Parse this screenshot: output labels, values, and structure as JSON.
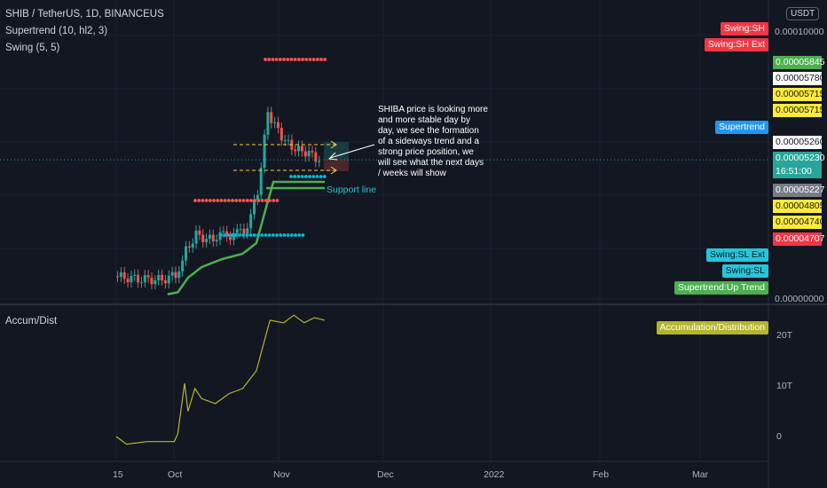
{
  "header": {
    "symbol_line": "SHIB / TetherUS, 1D, BINANCEUS",
    "indicator1": "Supertrend (10, hl2, 3)",
    "indicator2": "Swing (5, 5)",
    "pane2_title": "Accum/Dist",
    "currency_button": "USDT"
  },
  "labels": {
    "swing_sh": "Swing:SH",
    "swing_sh_ext": "Swing:SH Ext",
    "supertrend": "Supertrend",
    "swing_sl_ext": "Swing:SL Ext",
    "swing_sl": "Swing:SL",
    "supertrend_up": "Supertrend:Up Trend",
    "accum_dist": "Accumulation/Distribution"
  },
  "price_tags": {
    "p1": "0.00005845",
    "p2": "0.00005780",
    "p3": "0.00005715",
    "p4": "0.00005715",
    "p5": "0.00005260",
    "p6": "0.00005230",
    "p6_time": "16:51:00",
    "p7": "0.00005227",
    "p8": "0.00004805",
    "p9": "0.00004740",
    "p10": "0.00004707"
  },
  "annotation": {
    "note": "SHIBA price is looking more and more stable day by day, we see the formation of a sideways trend and a strong price position, we will see what the next days / weeks will show",
    "support": "Support line"
  },
  "colors": {
    "background": "#131722",
    "up": "#26a69a",
    "down": "#ef5350",
    "supertrend": "#4caf50",
    "swing_high": "#ff5252",
    "swing_low": "#00bcd4",
    "ad_line": "#b5b52c",
    "guide": "#f5d03b"
  },
  "chart_data": [
    {
      "type": "line",
      "title": "SHIB / TetherUS, 1D, BINANCEUS",
      "yaxis_ticks": [
        "0.00010000",
        "0.00000000"
      ],
      "xaxis_ticks": [
        "15",
        "Oct",
        "Nov",
        "Dec",
        "2022",
        "Feb",
        "Mar"
      ],
      "close_approx": [
        [
          "Sep 13",
          8.5e-06
        ],
        [
          "Sep 20",
          7.5e-06
        ],
        [
          "Sep 27",
          7.2e-06
        ],
        [
          "Oct 1",
          9e-06
        ],
        [
          "Oct 4",
          1.8e-05
        ],
        [
          "Oct 7",
          2.45e-05
        ],
        [
          "Oct 10",
          2.25e-05
        ],
        [
          "Oct 14",
          2.35e-05
        ],
        [
          "Oct 18",
          2.4e-05
        ],
        [
          "Oct 22",
          2.7e-05
        ],
        [
          "Oct 25",
          4e-05
        ],
        [
          "Oct 28",
          7e-05
        ],
        [
          "Oct 31",
          6.3e-05
        ],
        [
          "Nov 3",
          5.8e-05
        ],
        [
          "Nov 6",
          5.6e-05
        ],
        [
          "Nov 9",
          5.5e-05
        ],
        [
          "Nov 12",
          5.23e-05
        ]
      ],
      "supertrend_up": [
        [
          "Sep 28",
          1.8e-06
        ],
        [
          "Oct 1",
          2.5e-06
        ],
        [
          "Oct 4",
          8e-06
        ],
        [
          "Oct 8",
          1.2e-05
        ],
        [
          "Oct 14",
          1.5e-05
        ],
        [
          "Oct 20",
          1.7e-05
        ],
        [
          "Oct 24",
          2.1e-05
        ],
        [
          "Oct 27",
          3.5e-05
        ],
        [
          "Oct 29",
          4.4e-05
        ],
        [
          "Nov 13",
          4.4e-05
        ]
      ],
      "swing_high_levels": [
        9e-05,
        3.7e-05
      ],
      "swing_low_levels": [
        4.6e-05,
        2.4e-05
      ]
    },
    {
      "type": "line",
      "title": "Accum/Dist",
      "yaxis_ticks": [
        "20T",
        "10T",
        "0"
      ],
      "values_T": [
        [
          "Sep 13",
          0.0
        ],
        [
          "Sep 16",
          -1.5
        ],
        [
          "Sep 22",
          -1.0
        ],
        [
          "Sep 30",
          -1.0
        ],
        [
          "Oct 1",
          0.5
        ],
        [
          "Oct 3",
          10.5
        ],
        [
          "Oct 4",
          5.0
        ],
        [
          "Oct 6",
          9.5
        ],
        [
          "Oct 8",
          7.5
        ],
        [
          "Oct 12",
          6.5
        ],
        [
          "Oct 16",
          8.5
        ],
        [
          "Oct 20",
          9.5
        ],
        [
          "Oct 24",
          13.0
        ],
        [
          "Oct 27",
          20.5
        ],
        [
          "Oct 28",
          23.0
        ],
        [
          "Nov 1",
          22.5
        ],
        [
          "Nov 4",
          24.0
        ],
        [
          "Nov 7",
          22.5
        ],
        [
          "Nov 10",
          23.5
        ],
        [
          "Nov 13",
          23.0
        ]
      ]
    }
  ]
}
